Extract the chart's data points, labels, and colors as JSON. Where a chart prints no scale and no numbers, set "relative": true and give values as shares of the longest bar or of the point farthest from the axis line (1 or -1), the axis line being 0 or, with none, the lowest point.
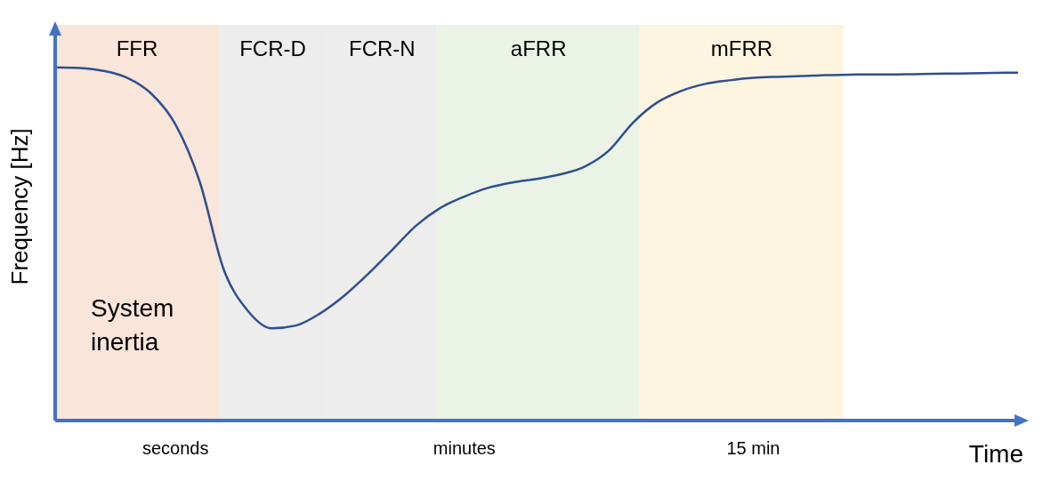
{
  "chart_data": {
    "type": "line",
    "relative": true,
    "xlabel": "Time",
    "ylabel": "Frequency [Hz]",
    "categories": [
      null,
      null,
      null,
      null,
      null,
      "seconds",
      null,
      null,
      null,
      null,
      null,
      null,
      null,
      null,
      null,
      null,
      null,
      "minutes",
      null,
      null,
      null,
      null,
      null,
      null,
      null,
      null,
      null,
      null,
      null,
      "15 min",
      null,
      null,
      null,
      null,
      null,
      null,
      null,
      null,
      null,
      null,
      null
    ],
    "series": [
      {
        "color": "#2f4f8f",
        "values": [
          1.0,
          0.998,
          0.99,
          0.97,
          0.925,
          0.838,
          0.677,
          0.428,
          0.311,
          0.261,
          0.269,
          0.303,
          0.353,
          0.415,
          0.483,
          0.552,
          0.602,
          0.634,
          0.659,
          0.674,
          0.684,
          0.697,
          0.719,
          0.764,
          0.843,
          0.9,
          0.933,
          0.953,
          0.963,
          0.97,
          0.973,
          0.975,
          0.978,
          0.979,
          0.98,
          0.98,
          0.981,
          0.982,
          0.983,
          0.984,
          0.985
        ]
      }
    ],
    "annotations": [
      "FFR",
      "FCR-D",
      "FCR-N",
      "aFRR",
      "mFRR",
      "System inertia"
    ],
    "line_style": "solid",
    "marker": "none",
    "grid": false,
    "legend": false
  }
}
